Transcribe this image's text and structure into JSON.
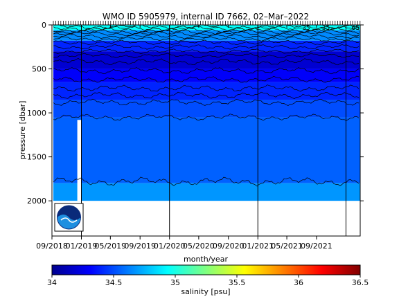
{
  "chart_data": {
    "type": "heatmap",
    "title": "WMO ID 5905979, internal ID 7662, 02–Mar–2022",
    "xlabel": "month/year",
    "ylabel": "pressure [dbar]",
    "xlim": [
      "2018-09-01",
      "2022-03-01"
    ],
    "ylim": [
      0,
      2400
    ],
    "y_reversed": true,
    "x_ticks": [
      "09/2018",
      "01/2019",
      "05/2019",
      "09/2019",
      "01/2020",
      "05/2020",
      "09/2020",
      "01/2021",
      "05/2021",
      "09/2021"
    ],
    "y_ticks": [
      0,
      500,
      1000,
      1500,
      2000
    ],
    "profile_depth_max": 2000,
    "data_gap": {
      "start": "2018-12-15",
      "end": "2019-01-01",
      "from_pressure": 1080
    },
    "bands": [
      {
        "p_top": 0,
        "p_bottom": 60,
        "salinity": 34.95
      },
      {
        "p_top": 60,
        "p_bottom": 180,
        "salinity": 34.65
      },
      {
        "p_top": 180,
        "p_bottom": 300,
        "salinity": 34.4
      },
      {
        "p_top": 300,
        "p_bottom": 500,
        "salinity": 34.2
      },
      {
        "p_top": 500,
        "p_bottom": 650,
        "salinity": 34.3
      },
      {
        "p_top": 650,
        "p_bottom": 850,
        "salinity": 34.4
      },
      {
        "p_top": 850,
        "p_bottom": 1050,
        "salinity": 34.5
      },
      {
        "p_top": 1050,
        "p_bottom": 1800,
        "salinity": 34.55
      },
      {
        "p_top": 1800,
        "p_bottom": 2000,
        "salinity": 34.68
      }
    ],
    "contour_pressures": [
      20,
      40,
      60,
      80,
      100,
      130,
      160,
      200,
      250,
      300,
      350,
      420,
      520,
      620,
      720,
      800,
      880,
      1050,
      1780
    ],
    "year_boundaries": [
      "2019-01-01",
      "2020-01-01",
      "2021-01-01",
      "2022-01-01"
    ],
    "contour_labels": [
      {
        "date": "2021-07-20",
        "pressure": 30,
        "text": "35"
      },
      {
        "date": "2021-10-10",
        "pressure": 30,
        "text": "35"
      },
      {
        "date": "2022-02-10",
        "pressure": 30,
        "text": "65"
      }
    ],
    "colorbar": {
      "label": "salinity [psu]",
      "range": [
        34,
        36.5
      ],
      "ticks": [
        "34",
        "34.5",
        "35",
        "35.5",
        "36",
        "36.5"
      ],
      "colormap": "jet"
    },
    "logo": "noaa-logo"
  }
}
